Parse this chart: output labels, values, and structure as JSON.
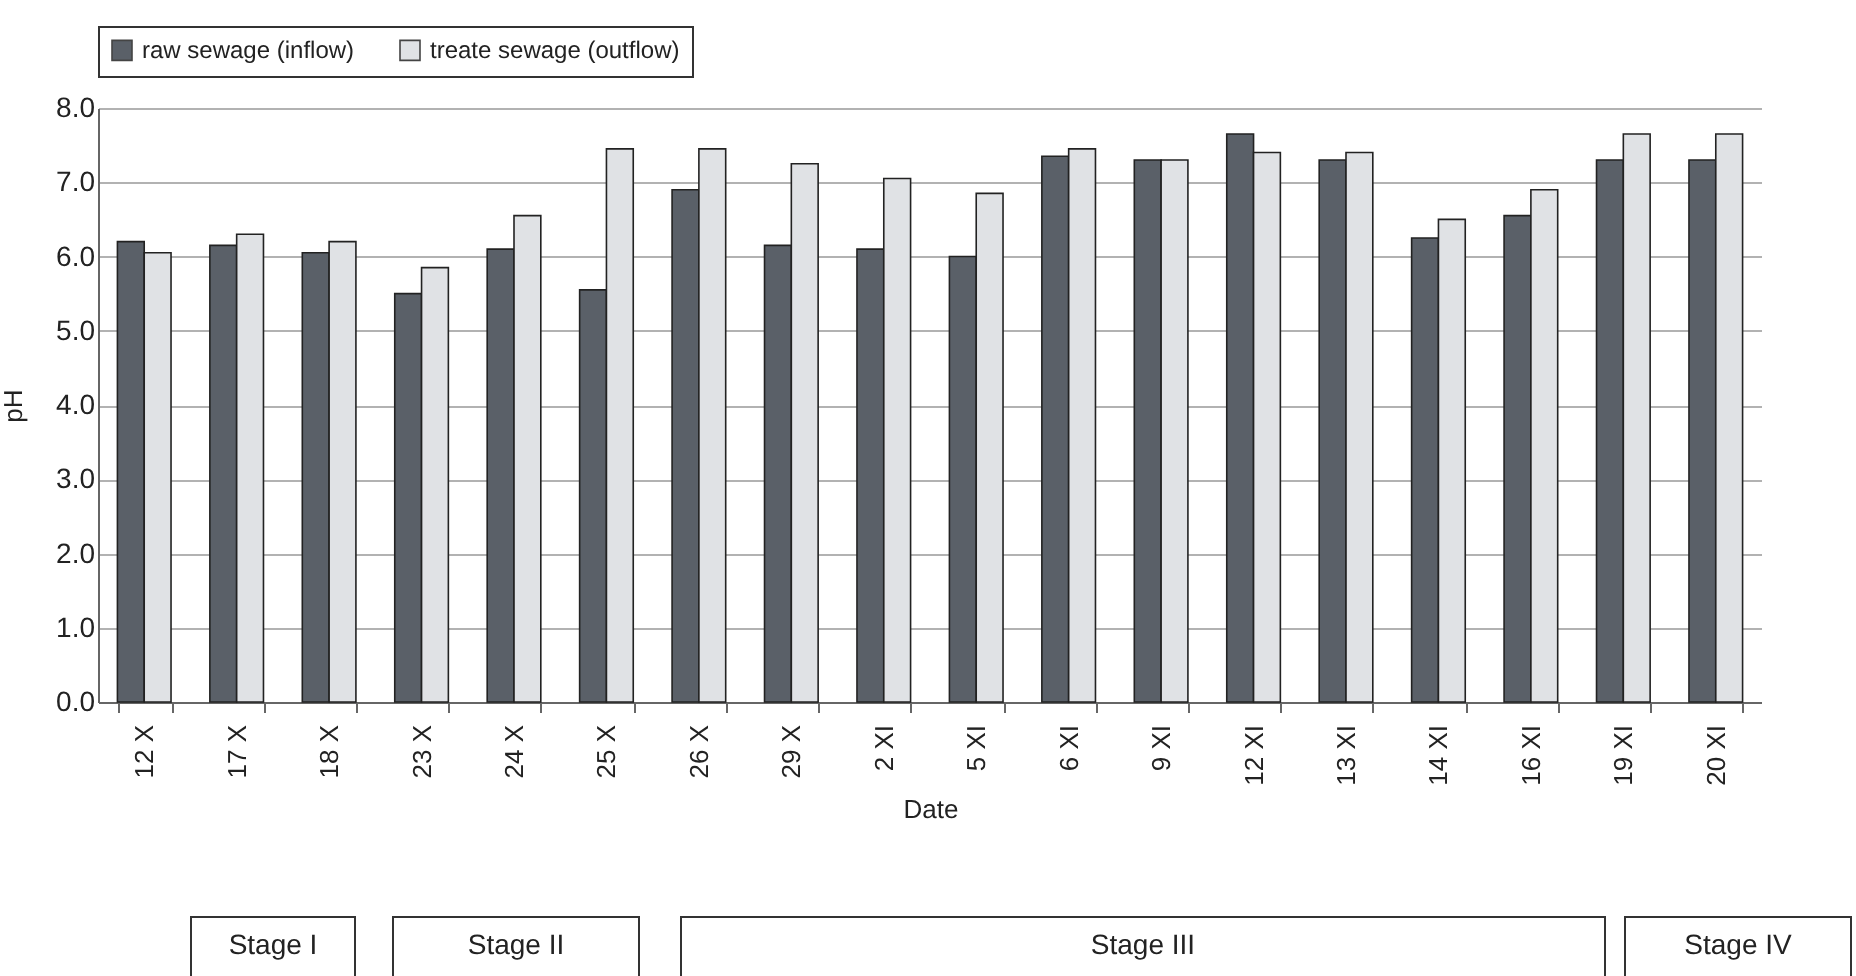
{
  "chart_data": {
    "type": "bar",
    "xlabel": "Date",
    "ylabel": "pH",
    "categories": [
      "12 X",
      "17 X",
      "18 X",
      "23 X",
      "24 X",
      "25 X",
      "26 X",
      "29 X",
      "2 XI",
      "5 XI",
      "6 XI",
      "9 XI",
      "12 XI",
      "13 XI",
      "14 XI",
      "16 XI",
      "19 XI",
      "20 XI"
    ],
    "series": [
      {
        "name": "raw sewage (inflow)",
        "color": "#5a6068",
        "values": [
          6.2,
          6.15,
          6.05,
          5.5,
          6.1,
          5.55,
          6.9,
          6.15,
          6.1,
          6.0,
          7.35,
          7.3,
          7.65,
          7.3,
          6.25,
          6.55,
          7.3,
          7.3
        ]
      },
      {
        "name": "treate sewage (outflow)",
        "color": "#e0e2e5",
        "values": [
          6.05,
          6.3,
          6.2,
          5.85,
          6.55,
          7.45,
          7.45,
          7.25,
          7.05,
          6.85,
          7.45,
          7.3,
          7.4,
          7.4,
          6.5,
          6.9,
          7.65,
          7.65
        ]
      }
    ],
    "ylim": [
      0,
      8
    ],
    "yticks": [
      {
        "value": 0,
        "label": "0.0"
      },
      {
        "value": 1,
        "label": "1.0"
      },
      {
        "value": 2,
        "label": "2.0"
      },
      {
        "value": 3,
        "label": "3.0"
      },
      {
        "value": 4,
        "label": "4.0"
      },
      {
        "value": 5,
        "label": "5.0"
      },
      {
        "value": 6,
        "label": "6.0"
      },
      {
        "value": 7,
        "label": "7.0"
      },
      {
        "value": 8,
        "label": "8.0"
      }
    ],
    "grid": "y",
    "legend": "top",
    "annotations": [
      "Stage I",
      "Stage II",
      "Stage III",
      "Stage IV"
    ]
  }
}
